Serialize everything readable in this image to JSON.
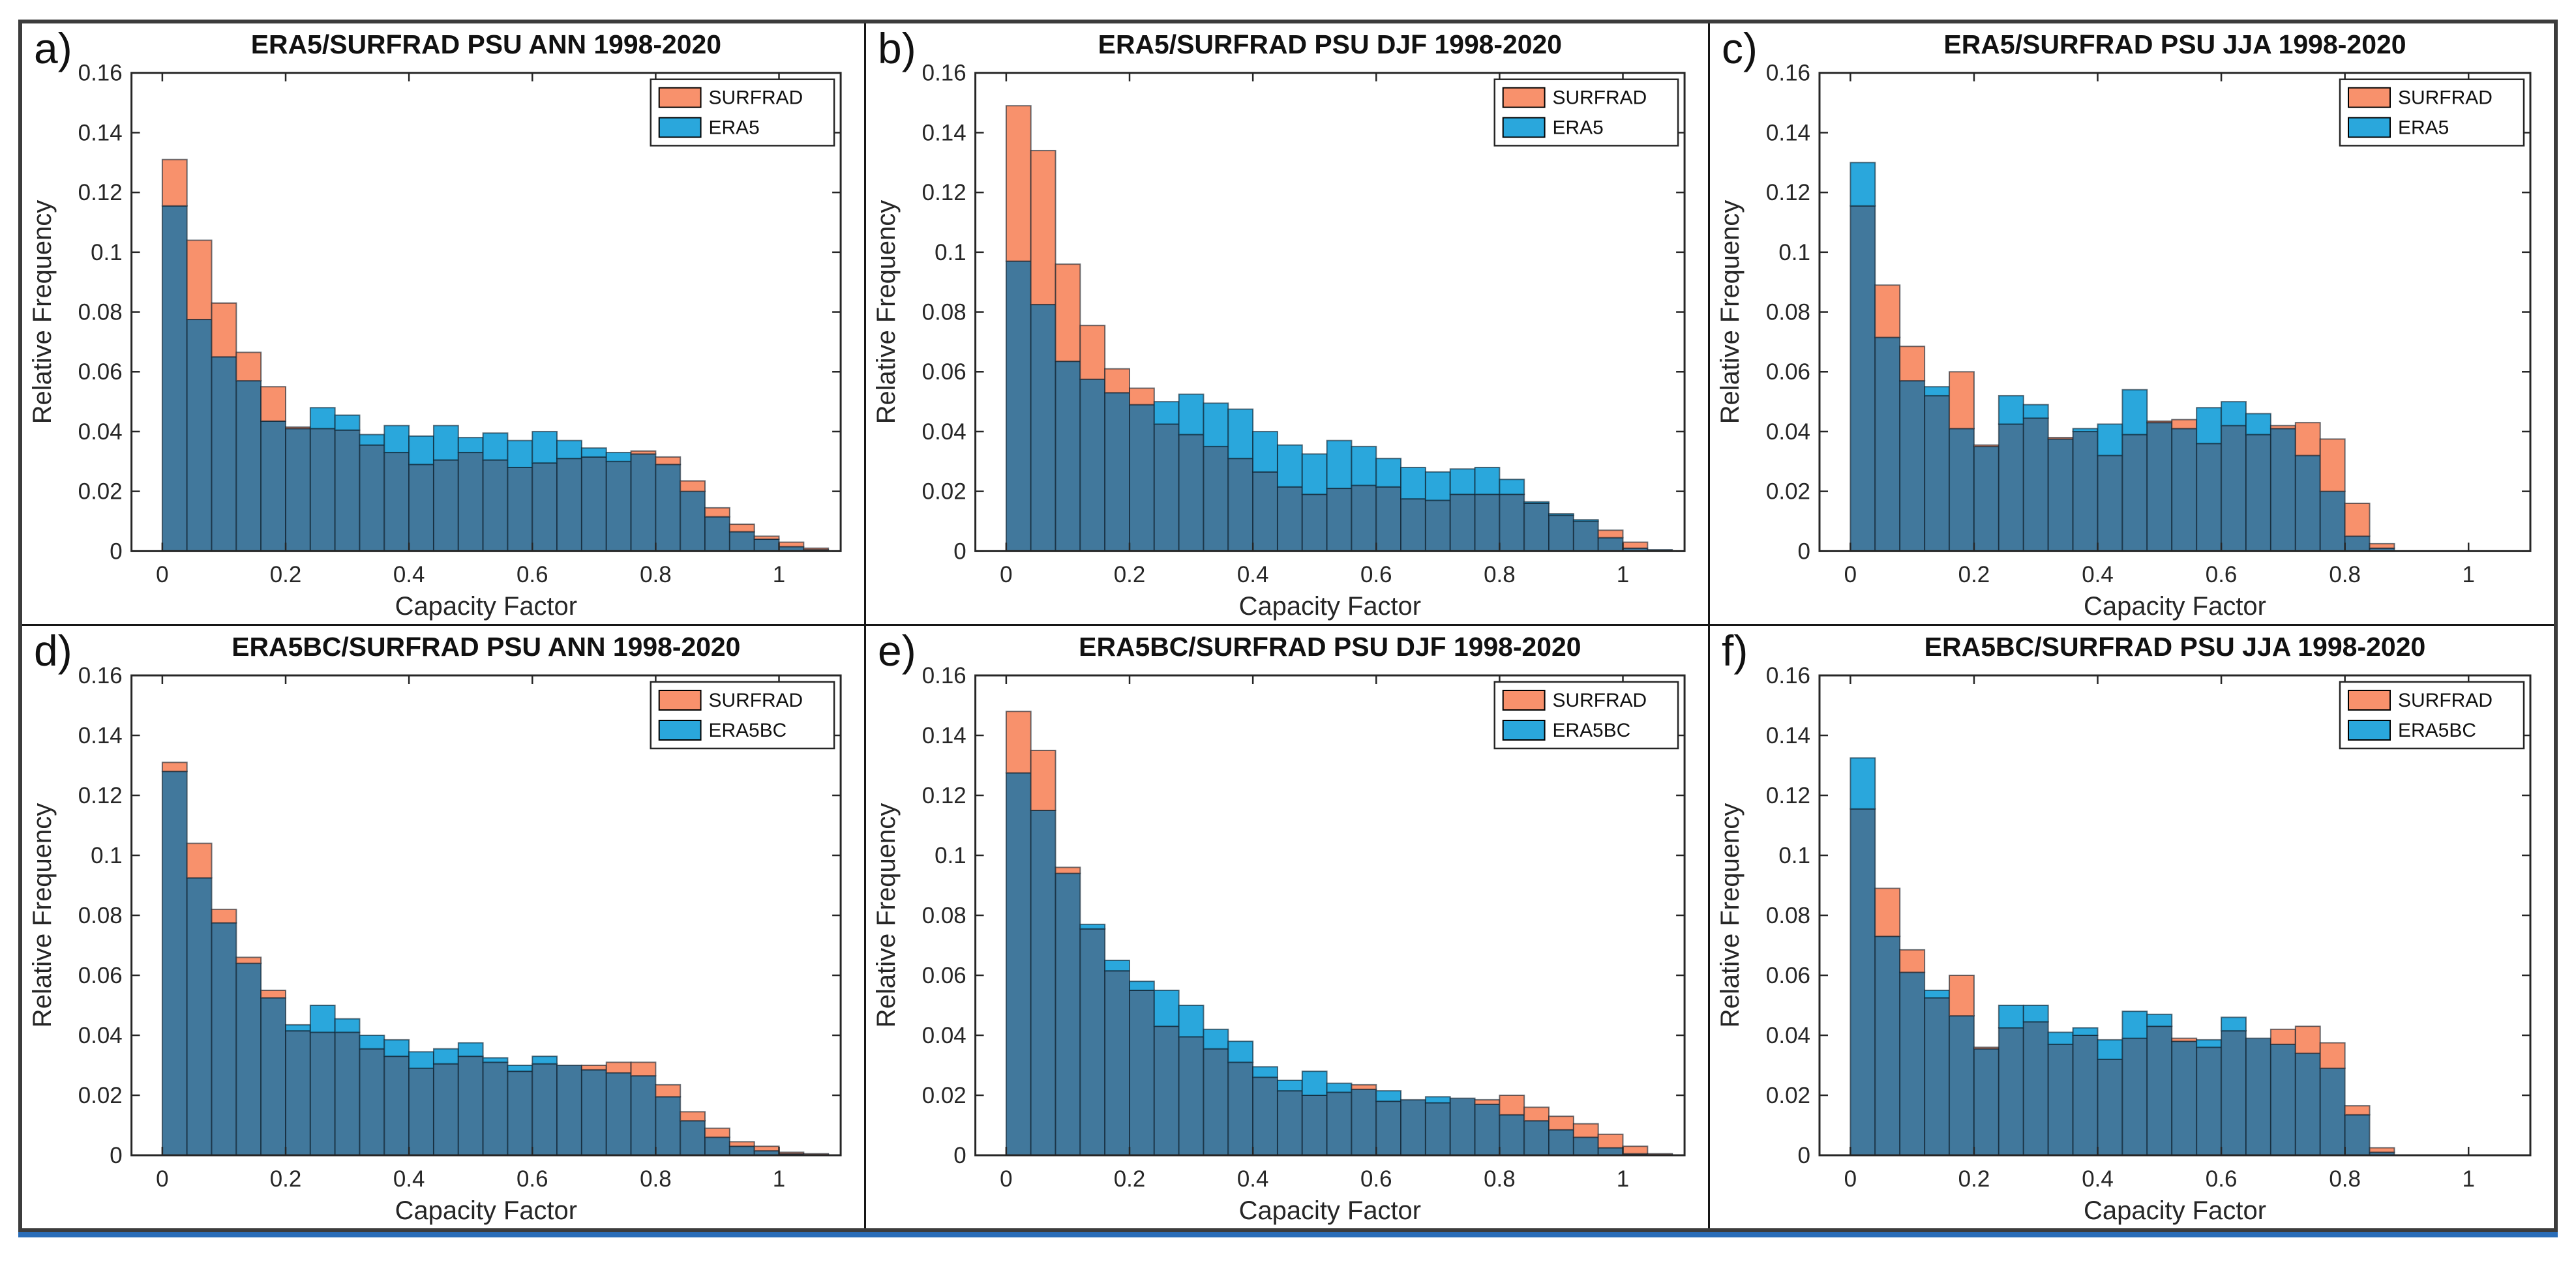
{
  "figure": {
    "description": "Six-panel figure of overlaid relative-frequency histograms comparing SURFRAD observations with ERA5 (top row) and bias-corrected ERA5BC (bottom row) solar capacity factors at PSU, annually and by season, 1998-2020",
    "colors": {
      "surfrad_orange": "#F8916C",
      "era_blue": "#2AA7DC",
      "overlap_steel": "#41789C",
      "bar_edge": "rgba(14,30,44,0.6)",
      "axis": "#262626",
      "panel_divider": "#161616",
      "outer_border": "#3C3C3C",
      "bottom_line_blue": "#2A6DB8",
      "background": "#FFFFFF"
    }
  },
  "chart_data": [
    {
      "id": "a",
      "panel_label": "a)",
      "type": "bar",
      "subtype": "overlaid-histogram",
      "title": "ERA5/SURFRAD  PSU  ANN  1998-2020",
      "xlabel": "Capacity Factor",
      "ylabel": "Relative Frequency",
      "xlim": [
        -0.05,
        1.1
      ],
      "ylim": [
        0,
        0.16
      ],
      "xticks": [
        0,
        0.2,
        0.4,
        0.6,
        0.8,
        1
      ],
      "yticks": [
        0,
        0.02,
        0.04,
        0.06,
        0.08,
        0.1,
        0.12,
        0.14,
        0.16
      ],
      "bin_start": 0,
      "bin_width": 0.04,
      "grid": false,
      "legend_position": "top-right",
      "legend_entries": [
        "SURFRAD",
        "ERA5"
      ],
      "series": [
        {
          "name": "SURFRAD",
          "color": "#F8916C",
          "values": [
            0.131,
            0.104,
            0.083,
            0.0665,
            0.055,
            0.0415,
            0.041,
            0.0405,
            0.0355,
            0.033,
            0.029,
            0.0305,
            0.033,
            0.0305,
            0.028,
            0.0295,
            0.031,
            0.0315,
            0.03,
            0.0335,
            0.0315,
            0.0235,
            0.0145,
            0.009,
            0.005,
            0.003,
            0.001
          ]
        },
        {
          "name": "ERA5",
          "color": "#2AA7DC",
          "values": [
            0.1155,
            0.0775,
            0.065,
            0.057,
            0.0435,
            0.041,
            0.048,
            0.0455,
            0.039,
            0.042,
            0.0385,
            0.042,
            0.038,
            0.0395,
            0.037,
            0.04,
            0.037,
            0.0345,
            0.033,
            0.0325,
            0.029,
            0.02,
            0.0115,
            0.0065,
            0.004,
            0.0015,
            0.0005
          ]
        }
      ]
    },
    {
      "id": "b",
      "panel_label": "b)",
      "type": "bar",
      "subtype": "overlaid-histogram",
      "title": "ERA5/SURFRAD  PSU  DJF  1998-2020",
      "xlabel": "Capacity Factor",
      "ylabel": "Relative Frequency",
      "xlim": [
        -0.05,
        1.1
      ],
      "ylim": [
        0,
        0.16
      ],
      "xticks": [
        0,
        0.2,
        0.4,
        0.6,
        0.8,
        1
      ],
      "yticks": [
        0,
        0.02,
        0.04,
        0.06,
        0.08,
        0.1,
        0.12,
        0.14,
        0.16
      ],
      "bin_start": 0,
      "bin_width": 0.04,
      "grid": false,
      "legend_position": "top-right",
      "legend_entries": [
        "SURFRAD",
        "ERA5"
      ],
      "series": [
        {
          "name": "SURFRAD",
          "color": "#F8916C",
          "values": [
            0.149,
            0.134,
            0.096,
            0.0755,
            0.061,
            0.0545,
            0.0425,
            0.039,
            0.035,
            0.031,
            0.0265,
            0.0215,
            0.019,
            0.021,
            0.022,
            0.0215,
            0.0175,
            0.017,
            0.019,
            0.019,
            0.019,
            0.016,
            0.012,
            0.01,
            0.007,
            0.003,
            0.0005
          ]
        },
        {
          "name": "ERA5",
          "color": "#2AA7DC",
          "values": [
            0.097,
            0.0825,
            0.0635,
            0.0575,
            0.053,
            0.049,
            0.05,
            0.0525,
            0.0495,
            0.0475,
            0.04,
            0.0355,
            0.0325,
            0.037,
            0.035,
            0.031,
            0.028,
            0.0265,
            0.0275,
            0.028,
            0.024,
            0.0165,
            0.0125,
            0.0105,
            0.0045,
            0.001,
            0.0005
          ]
        }
      ]
    },
    {
      "id": "c",
      "panel_label": "c)",
      "type": "bar",
      "subtype": "overlaid-histogram",
      "title": "ERA5/SURFRAD  PSU  JJA  1998-2020",
      "xlabel": "Capacity Factor",
      "ylabel": "Relative Frequency",
      "xlim": [
        -0.05,
        1.1
      ],
      "ylim": [
        0,
        0.16
      ],
      "xticks": [
        0,
        0.2,
        0.4,
        0.6,
        0.8,
        1
      ],
      "yticks": [
        0,
        0.02,
        0.04,
        0.06,
        0.08,
        0.1,
        0.12,
        0.14,
        0.16
      ],
      "bin_start": 0,
      "bin_width": 0.04,
      "grid": false,
      "legend_position": "top-right",
      "legend_entries": [
        "SURFRAD",
        "ERA5"
      ],
      "series": [
        {
          "name": "SURFRAD",
          "color": "#F8916C",
          "values": [
            0.1155,
            0.089,
            0.0685,
            0.052,
            0.06,
            0.0355,
            0.0425,
            0.0445,
            0.038,
            0.04,
            0.032,
            0.039,
            0.0435,
            0.044,
            0.036,
            0.042,
            0.039,
            0.042,
            0.043,
            0.0375,
            0.016,
            0.0025,
            0,
            0,
            0,
            0,
            0
          ]
        },
        {
          "name": "ERA5",
          "color": "#2AA7DC",
          "values": [
            0.13,
            0.0715,
            0.057,
            0.055,
            0.041,
            0.035,
            0.052,
            0.049,
            0.0375,
            0.041,
            0.0425,
            0.054,
            0.043,
            0.041,
            0.048,
            0.05,
            0.046,
            0.041,
            0.032,
            0.02,
            0.005,
            0.001,
            0,
            0,
            0,
            0,
            0
          ]
        }
      ]
    },
    {
      "id": "d",
      "panel_label": "d)",
      "type": "bar",
      "subtype": "overlaid-histogram",
      "title": "ERA5BC/SURFRAD  PSU  ANN  1998-2020",
      "xlabel": "Capacity Factor",
      "ylabel": "Relative Frequency",
      "xlim": [
        -0.05,
        1.1
      ],
      "ylim": [
        0,
        0.16
      ],
      "xticks": [
        0,
        0.2,
        0.4,
        0.6,
        0.8,
        1
      ],
      "yticks": [
        0,
        0.02,
        0.04,
        0.06,
        0.08,
        0.1,
        0.12,
        0.14,
        0.16
      ],
      "bin_start": 0,
      "bin_width": 0.04,
      "grid": false,
      "legend_position": "top-right",
      "legend_entries": [
        "SURFRAD",
        "ERA5BC"
      ],
      "series": [
        {
          "name": "SURFRAD",
          "color": "#F8916C",
          "values": [
            0.131,
            0.104,
            0.082,
            0.066,
            0.055,
            0.0415,
            0.041,
            0.041,
            0.0355,
            0.033,
            0.029,
            0.0305,
            0.033,
            0.031,
            0.028,
            0.0305,
            0.03,
            0.03,
            0.031,
            0.031,
            0.0235,
            0.0145,
            0.009,
            0.0045,
            0.003,
            0.001,
            0.0005
          ]
        },
        {
          "name": "ERA5BC",
          "color": "#2AA7DC",
          "values": [
            0.128,
            0.0925,
            0.0775,
            0.064,
            0.0525,
            0.0435,
            0.05,
            0.0455,
            0.04,
            0.0385,
            0.0345,
            0.0355,
            0.0375,
            0.0325,
            0.03,
            0.033,
            0.03,
            0.0285,
            0.0275,
            0.0265,
            0.0195,
            0.0115,
            0.006,
            0.003,
            0.0015,
            0.0005,
            0.0003
          ]
        }
      ]
    },
    {
      "id": "e",
      "panel_label": "e)",
      "type": "bar",
      "subtype": "overlaid-histogram",
      "title": "ERA5BC/SURFRAD  PSU  DJF  1998-2020",
      "xlabel": "Capacity Factor",
      "ylabel": "Relative Frequency",
      "xlim": [
        -0.05,
        1.1
      ],
      "ylim": [
        0,
        0.16
      ],
      "xticks": [
        0,
        0.2,
        0.4,
        0.6,
        0.8,
        1
      ],
      "yticks": [
        0,
        0.02,
        0.04,
        0.06,
        0.08,
        0.1,
        0.12,
        0.14,
        0.16
      ],
      "bin_start": 0,
      "bin_width": 0.04,
      "grid": false,
      "legend_position": "top-right",
      "legend_entries": [
        "SURFRAD",
        "ERA5BC"
      ],
      "series": [
        {
          "name": "SURFRAD",
          "color": "#F8916C",
          "values": [
            0.148,
            0.135,
            0.096,
            0.0755,
            0.0615,
            0.055,
            0.043,
            0.0395,
            0.0355,
            0.031,
            0.026,
            0.0215,
            0.02,
            0.021,
            0.0235,
            0.018,
            0.0185,
            0.0175,
            0.019,
            0.0185,
            0.02,
            0.016,
            0.013,
            0.0105,
            0.007,
            0.003,
            0.0005
          ]
        },
        {
          "name": "ERA5BC",
          "color": "#2AA7DC",
          "values": [
            0.1275,
            0.115,
            0.094,
            0.077,
            0.065,
            0.058,
            0.055,
            0.05,
            0.042,
            0.038,
            0.0295,
            0.025,
            0.028,
            0.024,
            0.022,
            0.0215,
            0.0185,
            0.0195,
            0.019,
            0.017,
            0.0135,
            0.0115,
            0.0085,
            0.006,
            0.0025,
            0.0005,
            0.0003
          ]
        }
      ]
    },
    {
      "id": "f",
      "panel_label": "f)",
      "type": "bar",
      "subtype": "overlaid-histogram",
      "title": "ERA5BC/SURFRAD  PSU  JJA  1998-2020",
      "xlabel": "Capacity Factor",
      "ylabel": "Relative Frequency",
      "xlim": [
        -0.05,
        1.1
      ],
      "ylim": [
        0,
        0.16
      ],
      "xticks": [
        0,
        0.2,
        0.4,
        0.6,
        0.8,
        1
      ],
      "yticks": [
        0,
        0.02,
        0.04,
        0.06,
        0.08,
        0.1,
        0.12,
        0.14,
        0.16
      ],
      "bin_start": 0,
      "bin_width": 0.04,
      "grid": false,
      "legend_position": "top-right",
      "legend_entries": [
        "SURFRAD",
        "ERA5BC"
      ],
      "series": [
        {
          "name": "SURFRAD",
          "color": "#F8916C",
          "values": [
            0.1155,
            0.089,
            0.0685,
            0.0525,
            0.06,
            0.036,
            0.0425,
            0.0445,
            0.037,
            0.04,
            0.032,
            0.039,
            0.043,
            0.039,
            0.036,
            0.0415,
            0.039,
            0.042,
            0.043,
            0.0375,
            0.0165,
            0.0025,
            0,
            0,
            0,
            0,
            0
          ]
        },
        {
          "name": "ERA5BC",
          "color": "#2AA7DC",
          "values": [
            0.1325,
            0.073,
            0.061,
            0.055,
            0.0465,
            0.0355,
            0.05,
            0.05,
            0.041,
            0.0425,
            0.0385,
            0.048,
            0.047,
            0.038,
            0.0385,
            0.046,
            0.039,
            0.037,
            0.034,
            0.029,
            0.0135,
            0.001,
            0,
            0,
            0,
            0,
            0
          ]
        }
      ]
    }
  ]
}
